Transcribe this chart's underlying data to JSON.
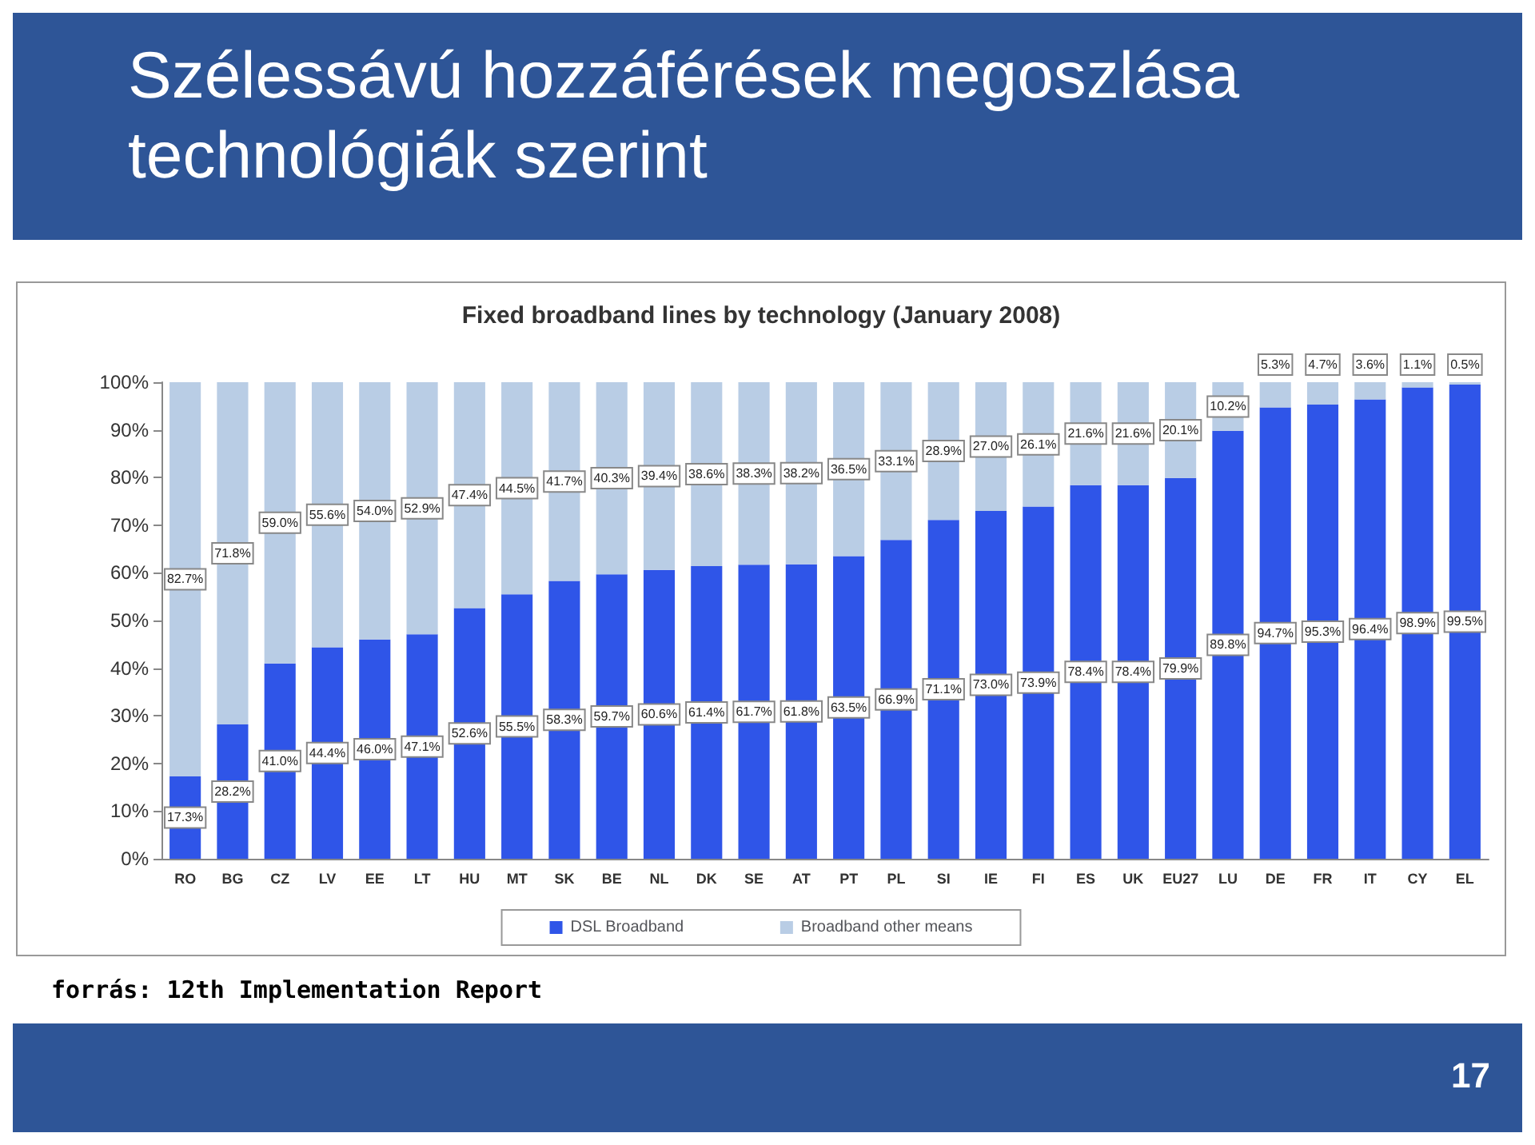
{
  "chart_data": {
    "type": "bar",
    "title": "Szélessávú hozzáférések megoszlása technológiák szerint",
    "subtitle": "Fixed broadband lines by technology (January 2008)",
    "annotations": [
      "forrás: 12th Implementation Report",
      "17"
    ],
    "categories": [
      "RO",
      "BG",
      "CZ",
      "LV",
      "EE",
      "LT",
      "HU",
      "MT",
      "SK",
      "BE",
      "NL",
      "DK",
      "SE",
      "AT",
      "PT",
      "PL",
      "SI",
      "IE",
      "FI",
      "ES",
      "UK",
      "EU27",
      "LU",
      "DE",
      "FR",
      "IT",
      "CY",
      "EL"
    ],
    "stacked": true,
    "legend": "bottom",
    "grid": false,
    "ylim": [
      0,
      100
    ],
    "yticks": [
      {
        "value": 0,
        "label": "0%"
      },
      {
        "value": 10,
        "label": "10%"
      },
      {
        "value": 20,
        "label": "20%"
      },
      {
        "value": 30,
        "label": "30%"
      },
      {
        "value": 40,
        "label": "40%"
      },
      {
        "value": 50,
        "label": "50%"
      },
      {
        "value": 60,
        "label": "60%"
      },
      {
        "value": 70,
        "label": "70%"
      },
      {
        "value": 80,
        "label": "80%"
      },
      {
        "value": 90,
        "label": "90%"
      },
      {
        "value": 100,
        "label": "100%"
      }
    ],
    "series": [
      {
        "name": "DSL Broadband",
        "color": "#2f55e8",
        "values": [
          17.3,
          28.2,
          41.0,
          44.4,
          46.0,
          47.1,
          52.6,
          55.5,
          58.3,
          59.7,
          60.6,
          61.4,
          61.7,
          61.8,
          63.5,
          66.9,
          71.1,
          73.0,
          73.9,
          78.4,
          78.4,
          79.9,
          89.8,
          94.7,
          95.3,
          96.4,
          98.9,
          99.5
        ],
        "value_labels": [
          "17.3%",
          "28.2%",
          "41.0%",
          "44.4%",
          "46.0%",
          "47.1%",
          "52.6%",
          "55.5%",
          "58.3%",
          "59.7%",
          "60.6%",
          "61.4%",
          "61.7%",
          "61.8%",
          "63.5%",
          "66.9%",
          "71.1%",
          "73.0%",
          "73.9%",
          "78.4%",
          "78.4%",
          "79.9%",
          "89.8%",
          "94.7%",
          "95.3%",
          "96.4%",
          "98.9%",
          "99.5%"
        ]
      },
      {
        "name": "Broadband other means",
        "color": "#b9cde5",
        "values": [
          82.7,
          71.8,
          59.0,
          55.6,
          54.0,
          52.9,
          47.4,
          44.5,
          41.7,
          40.3,
          39.4,
          38.6,
          38.3,
          38.2,
          36.5,
          33.1,
          28.9,
          27.0,
          26.1,
          21.6,
          21.6,
          20.1,
          10.2,
          5.3,
          4.7,
          3.6,
          1.1,
          0.5
        ],
        "value_labels": [
          "82.7%",
          "71.8%",
          "59.0%",
          "55.6%",
          "54.0%",
          "52.9%",
          "47.4%",
          "44.5%",
          "41.7%",
          "40.3%",
          "39.4%",
          "38.6%",
          "38.3%",
          "38.2%",
          "36.5%",
          "33.1%",
          "28.9%",
          "27.0%",
          "26.1%",
          "21.6%",
          "21.6%",
          "20.1%",
          "10.2%",
          "5.3%",
          "4.7%",
          "3.6%",
          "1.1%",
          "0.5%"
        ]
      }
    ]
  }
}
